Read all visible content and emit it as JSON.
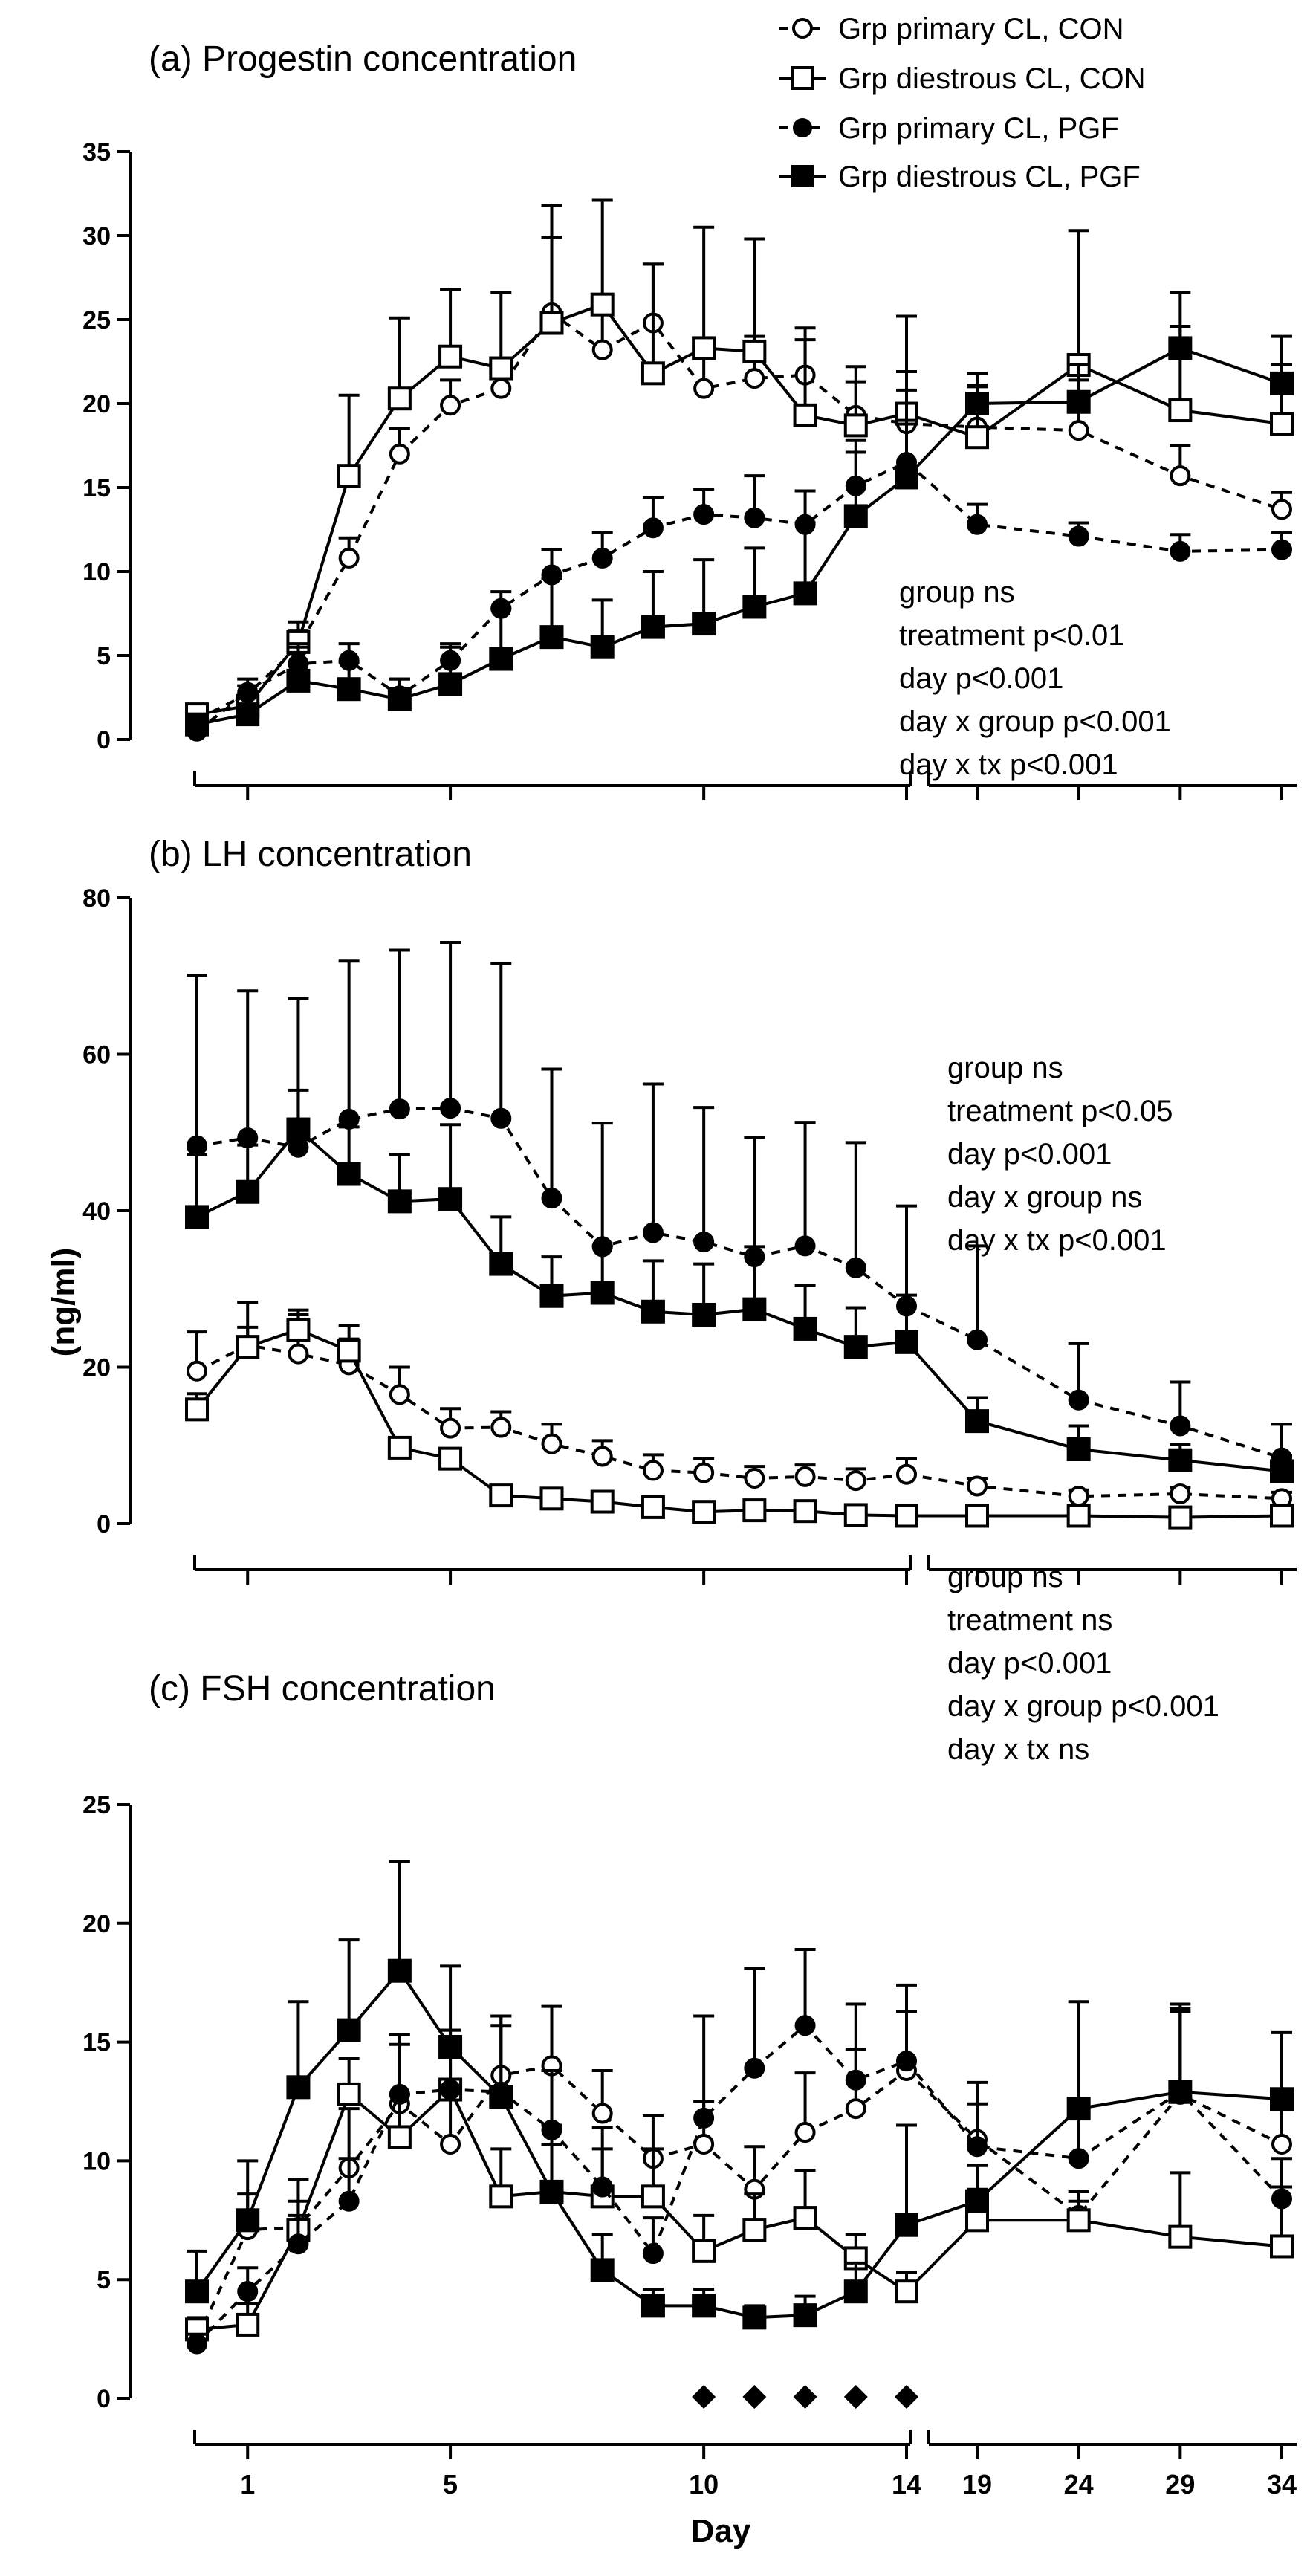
{
  "legend": [
    {
      "label": "Grp primary CL, CON",
      "line": "dashed",
      "marker": "circle-open"
    },
    {
      "label": "Grp diestrous CL, CON",
      "line": "solid",
      "marker": "square-open"
    },
    {
      "label": "Grp primary CL, PGF",
      "line": "dashed",
      "marker": "circle-filled"
    },
    {
      "label": "Grp diestrous CL, PGF",
      "line": "solid",
      "marker": "square-filled"
    }
  ],
  "ylabel": "(ng/ml)",
  "xlabel": "Day",
  "chart_data": [
    {
      "type": "line",
      "title": "(a) Progestin concentration",
      "ylim": [
        0,
        35
      ],
      "yticks": [
        "0",
        "5",
        "10",
        "15",
        "20",
        "25",
        "30",
        "35"
      ],
      "xticks": [],
      "stats": [
        "group ns",
        "treatment p<0.01",
        "day p<0.001",
        "day x group p<0.001",
        "day x tx p<0.001"
      ],
      "series": [
        {
          "name": "Grp primary CL, CON",
          "x": [
            0,
            1,
            2,
            3,
            4,
            5,
            6,
            7,
            8,
            9,
            10,
            11,
            12,
            13,
            14,
            19,
            24,
            29,
            34
          ],
          "values": [
            1.2,
            2.7,
            5.5,
            10.8,
            17.0,
            19.9,
            20.9,
            25.4,
            23.2,
            24.8,
            20.9,
            21.5,
            21.7,
            19.3,
            18.8,
            18.6,
            18.4,
            15.7,
            13.7
          ],
          "err": [
            0.5,
            0.5,
            1.0,
            1.2,
            1.5,
            1.5,
            1.5,
            4.5,
            2.5,
            3.5,
            2.8,
            2.5,
            2.8,
            2.0,
            2.0,
            2.5,
            3.0,
            1.8,
            1.0
          ]
        },
        {
          "name": "Grp diestrous CL, CON",
          "x": [
            0,
            1,
            2,
            3,
            4,
            5,
            6,
            7,
            8,
            9,
            10,
            11,
            12,
            13,
            14,
            19,
            24,
            29,
            34
          ],
          "values": [
            1.5,
            2.0,
            5.8,
            15.7,
            20.3,
            22.8,
            22.1,
            24.8,
            25.9,
            21.8,
            23.3,
            23.1,
            19.3,
            18.7,
            19.4,
            18.0,
            22.3,
            19.6,
            18.8
          ],
          "err": [
            0.5,
            0.5,
            1.2,
            4.8,
            4.8,
            4.0,
            4.5,
            7.0,
            6.2,
            6.5,
            7.2,
            6.7,
            4.5,
            3.5,
            5.8,
            3.0,
            8.0,
            5.0,
            3.5
          ]
        },
        {
          "name": "Grp primary CL, PGF",
          "x": [
            0,
            1,
            2,
            3,
            4,
            5,
            6,
            7,
            8,
            9,
            10,
            11,
            12,
            13,
            14,
            19,
            24,
            29,
            34
          ],
          "values": [
            0.5,
            2.8,
            4.5,
            4.7,
            2.6,
            4.7,
            7.8,
            9.8,
            10.8,
            12.6,
            13.4,
            13.2,
            12.8,
            15.1,
            16.5,
            12.8,
            12.1,
            11.2,
            11.3
          ],
          "err": [
            0.3,
            0.8,
            1.2,
            1.0,
            1.0,
            1.0,
            1.0,
            1.5,
            1.5,
            1.8,
            1.5,
            2.5,
            2.0,
            2.0,
            2.5,
            1.2,
            0.8,
            1.0,
            1.0
          ]
        },
        {
          "name": "Grp diestrous CL, PGF",
          "x": [
            0,
            1,
            2,
            3,
            4,
            5,
            6,
            7,
            8,
            9,
            10,
            11,
            12,
            13,
            14,
            19,
            24,
            29,
            34
          ],
          "values": [
            0.9,
            1.5,
            3.5,
            3.0,
            2.4,
            3.3,
            4.8,
            6.1,
            5.5,
            6.7,
            6.9,
            7.9,
            8.7,
            13.3,
            15.6,
            20.0,
            20.1,
            23.3,
            21.2
          ],
          "err": [
            0.5,
            0.6,
            2.0,
            1.6,
            1.2,
            2.2,
            3.0,
            3.5,
            2.8,
            3.3,
            3.8,
            3.5,
            4.2,
            4.5,
            6.3,
            1.8,
            2.2,
            3.3,
            2.8
          ]
        }
      ]
    },
    {
      "type": "line",
      "title": "(b) LH concentration",
      "ylim": [
        0,
        80
      ],
      "yticks": [
        "0",
        "20",
        "40",
        "60",
        "80"
      ],
      "xticks": [],
      "stats": [
        "group ns",
        "treatment p<0.05",
        "day p<0.001",
        "day x group ns",
        "day x tx p<0.001"
      ],
      "series": [
        {
          "name": "Grp primary CL, CON",
          "x": [
            0,
            1,
            2,
            3,
            4,
            5,
            6,
            7,
            8,
            9,
            10,
            11,
            12,
            13,
            14,
            19,
            24,
            29,
            34
          ],
          "values": [
            19.5,
            22.8,
            21.7,
            20.3,
            16.5,
            12.2,
            12.3,
            10.2,
            8.6,
            6.8,
            6.5,
            5.8,
            6.0,
            5.5,
            6.3,
            4.8,
            3.5,
            3.8,
            3.2
          ],
          "err": [
            5.0,
            5.5,
            5.0,
            5.0,
            3.5,
            2.5,
            2.0,
            2.5,
            2.0,
            2.0,
            1.8,
            1.5,
            1.5,
            1.5,
            2.0,
            1.0,
            0.8,
            0.8,
            0.8
          ]
        },
        {
          "name": "Grp diestrous CL, CON",
          "x": [
            0,
            1,
            2,
            3,
            4,
            5,
            6,
            7,
            8,
            9,
            10,
            11,
            12,
            13,
            14,
            19,
            24,
            29,
            34
          ],
          "values": [
            14.6,
            22.6,
            24.8,
            22.1,
            9.7,
            8.3,
            3.6,
            3.2,
            2.8,
            2.1,
            1.5,
            1.7,
            1.6,
            1.1,
            1.0,
            1.0,
            1.0,
            0.8,
            1.0
          ],
          "err": [
            2.0,
            2.5,
            2.5,
            1.5,
            1.0,
            1.0,
            0.8,
            0.5,
            0.5,
            0.5,
            0.3,
            0.3,
            0.3,
            0.3,
            0.3,
            0.3,
            0.3,
            0.3,
            0.3
          ]
        },
        {
          "name": "Grp primary CL, PGF",
          "x": [
            0,
            1,
            2,
            3,
            4,
            5,
            6,
            7,
            8,
            9,
            10,
            11,
            12,
            13,
            14,
            19,
            24,
            29,
            34
          ],
          "values": [
            48.3,
            49.3,
            48.1,
            51.7,
            53.0,
            53.1,
            51.8,
            41.6,
            35.4,
            37.2,
            36.0,
            34.1,
            35.5,
            32.7,
            27.8,
            23.5,
            15.8,
            12.5,
            8.4
          ],
          "err": [
            21.8,
            18.8,
            19.0,
            20.2,
            20.3,
            21.2,
            19.8,
            16.5,
            15.8,
            19.0,
            17.2,
            15.3,
            15.8,
            16.0,
            12.8,
            12.0,
            7.2,
            5.6,
            4.3
          ]
        },
        {
          "name": "Grp diestrous CL, PGF",
          "x": [
            0,
            1,
            2,
            3,
            4,
            5,
            6,
            7,
            8,
            9,
            10,
            11,
            12,
            13,
            14,
            19,
            24,
            29,
            34
          ],
          "values": [
            39.2,
            42.4,
            50.4,
            44.7,
            41.2,
            41.5,
            33.2,
            29.1,
            29.5,
            27.1,
            26.7,
            27.4,
            24.9,
            22.6,
            23.2,
            13.1,
            9.5,
            8.1,
            6.7
          ],
          "err": [
            8.0,
            6.0,
            5.0,
            6.0,
            6.0,
            9.5,
            6.0,
            5.0,
            6.0,
            6.5,
            6.5,
            8.0,
            5.5,
            5.0,
            6.0,
            3.0,
            3.0,
            2.0,
            2.0
          ]
        }
      ]
    },
    {
      "type": "line",
      "title": "(c) FSH concentration",
      "ylim": [
        0,
        25
      ],
      "yticks": [
        "0",
        "5",
        "10",
        "15",
        "20",
        "25"
      ],
      "xticks": [
        "1",
        "5",
        "10",
        "14",
        "19",
        "24",
        "29",
        "34"
      ],
      "stats": [
        "group ns",
        "treatment ns",
        "day p<0.001",
        "day x group p<0.001",
        "day x tx ns"
      ],
      "significance_marker_days": [
        10,
        11,
        12,
        13,
        14
      ],
      "series": [
        {
          "name": "Grp primary CL, CON",
          "x": [
            0,
            1,
            2,
            3,
            4,
            5,
            6,
            7,
            8,
            9,
            10,
            11,
            12,
            13,
            14,
            19,
            24,
            29,
            34
          ],
          "values": [
            2.5,
            7.1,
            7.2,
            9.7,
            12.4,
            10.7,
            13.6,
            14.0,
            12.0,
            10.1,
            10.7,
            8.8,
            11.2,
            12.2,
            13.8,
            10.9,
            7.7,
            12.8,
            10.7
          ],
          "err": [
            0.5,
            1.5,
            2.0,
            2.5,
            2.5,
            2.5,
            2.5,
            2.5,
            1.8,
            1.8,
            1.8,
            1.8,
            2.5,
            2.5,
            2.5,
            1.5,
            1.0,
            3.5,
            2.2
          ]
        },
        {
          "name": "Grp diestrous CL, CON",
          "x": [
            0,
            1,
            2,
            3,
            4,
            5,
            6,
            7,
            8,
            9,
            10,
            11,
            12,
            13,
            14,
            19,
            24,
            29,
            34
          ],
          "values": [
            2.9,
            3.1,
            7.1,
            12.8,
            11.0,
            13.0,
            8.5,
            8.7,
            8.5,
            8.5,
            6.2,
            7.1,
            7.6,
            5.9,
            4.5,
            7.5,
            7.5,
            6.8,
            6.4
          ],
          "err": [
            0.5,
            0.9,
            1.2,
            1.5,
            1.8,
            2.5,
            2.0,
            2.0,
            2.0,
            2.0,
            1.5,
            1.5,
            2.0,
            1.0,
            0.8,
            1.3,
            0.8,
            2.7,
            2.5
          ]
        },
        {
          "name": "Grp primary CL, PGF",
          "x": [
            0,
            1,
            2,
            3,
            4,
            5,
            6,
            7,
            8,
            9,
            10,
            11,
            12,
            13,
            14,
            19,
            24,
            29,
            34
          ],
          "values": [
            2.3,
            4.5,
            6.5,
            8.3,
            12.8,
            13.0,
            12.9,
            11.3,
            8.9,
            6.1,
            11.8,
            13.9,
            15.7,
            13.4,
            14.2,
            10.6,
            10.1,
            12.9,
            8.4
          ],
          "err": [
            0.4,
            1.0,
            1.2,
            1.8,
            2.5,
            2.5,
            3.2,
            2.5,
            2.5,
            1.5,
            4.3,
            4.2,
            3.2,
            3.2,
            3.2,
            2.7,
            2.2,
            3.7,
            1.7
          ]
        },
        {
          "name": "Grp diestrous CL, PGF",
          "x": [
            0,
            1,
            2,
            3,
            4,
            5,
            6,
            7,
            8,
            9,
            10,
            11,
            12,
            13,
            14,
            19,
            24,
            29,
            34
          ],
          "values": [
            4.5,
            7.5,
            13.1,
            15.5,
            18.0,
            14.8,
            12.7,
            8.7,
            5.4,
            3.9,
            3.9,
            3.4,
            3.5,
            4.5,
            7.3,
            8.3,
            12.2,
            12.9,
            12.6
          ],
          "err": [
            1.7,
            2.5,
            3.6,
            3.8,
            4.6,
            3.4,
            3.0,
            2.8,
            1.5,
            0.7,
            0.7,
            0.5,
            0.8,
            1.2,
            4.2,
            1.5,
            4.5,
            3.5,
            2.8
          ]
        }
      ]
    }
  ]
}
